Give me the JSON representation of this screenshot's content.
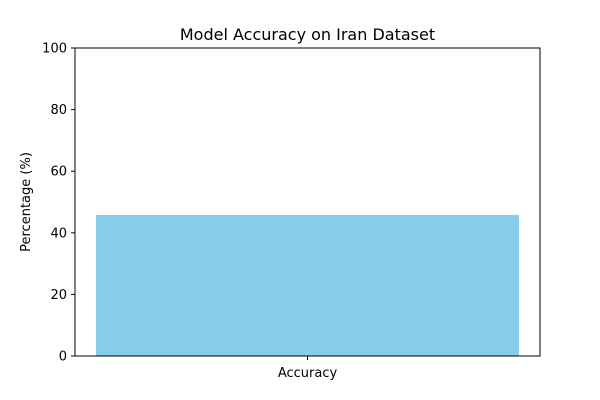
{
  "chart_data": {
    "type": "bar",
    "title": "Model Accuracy on Iran Dataset",
    "xlabel": "",
    "ylabel": "Percentage (%)",
    "categories": [
      "Accuracy"
    ],
    "values": [
      45.8
    ],
    "ylim": [
      0,
      100
    ],
    "yticks": [
      "0",
      "20",
      "40",
      "60",
      "80",
      "100"
    ],
    "grid": false,
    "legend": "none",
    "bar_color": "#87ceeb"
  }
}
